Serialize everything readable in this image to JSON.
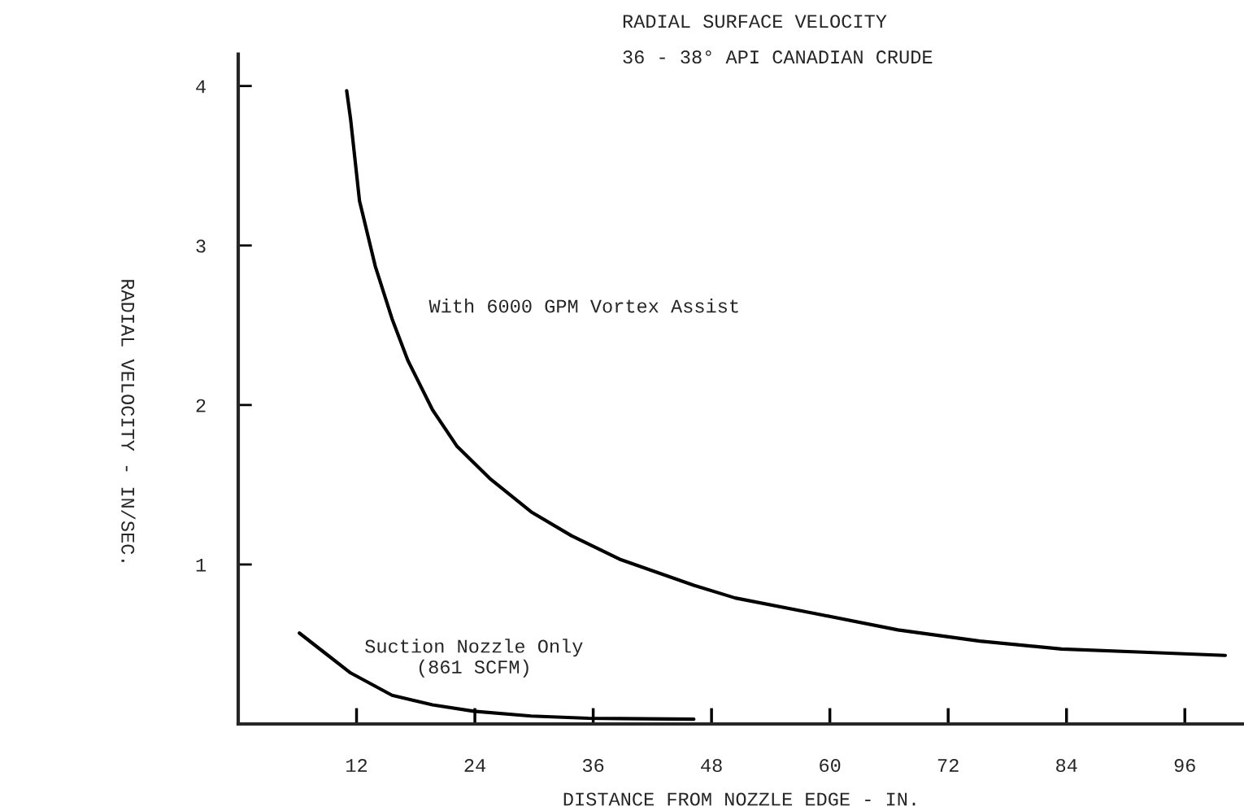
{
  "chart_data": {
    "type": "line",
    "title": "RADIAL SURFACE VELOCITY",
    "subtitle": "36 - 38° API CANADIAN CRUDE",
    "xlabel": "DISTANCE FROM NOZZLE EDGE - IN.",
    "ylabel": "RADIAL VELOCITY - IN/SEC.",
    "xlim": [
      0,
      102
    ],
    "ylim": [
      0,
      4.2
    ],
    "xticks": [
      12,
      24,
      36,
      48,
      60,
      72,
      84,
      96
    ],
    "yticks": [
      1,
      2,
      3,
      4
    ],
    "grid": false,
    "legend": false,
    "marker": "none",
    "line_style": "solid",
    "series": [
      {
        "name": "With 6000 GPM Vortex Assist",
        "color": "#000000",
        "x": [
          11.0,
          11.4,
          12.3,
          13.9,
          15.6,
          17.2,
          19.7,
          22.2,
          25.5,
          29.7,
          33.8,
          38.8,
          46.2,
          50.4,
          58.7,
          66.9,
          75.2,
          83.5,
          91.8,
          100.1
        ],
        "values": [
          3.97,
          3.79,
          3.28,
          2.87,
          2.54,
          2.28,
          1.97,
          1.74,
          1.54,
          1.33,
          1.18,
          1.03,
          0.87,
          0.79,
          0.69,
          0.59,
          0.52,
          0.47,
          0.45,
          0.43
        ]
      },
      {
        "name": "Suction Nozzle Only\n(861 SCFM)",
        "color": "#000000",
        "x": [
          6.2,
          8.9,
          11.4,
          15.6,
          19.7,
          23.9,
          29.7,
          35.5,
          46.2
        ],
        "values": [
          0.57,
          0.44,
          0.32,
          0.18,
          0.12,
          0.08,
          0.05,
          0.036,
          0.03
        ]
      }
    ]
  }
}
